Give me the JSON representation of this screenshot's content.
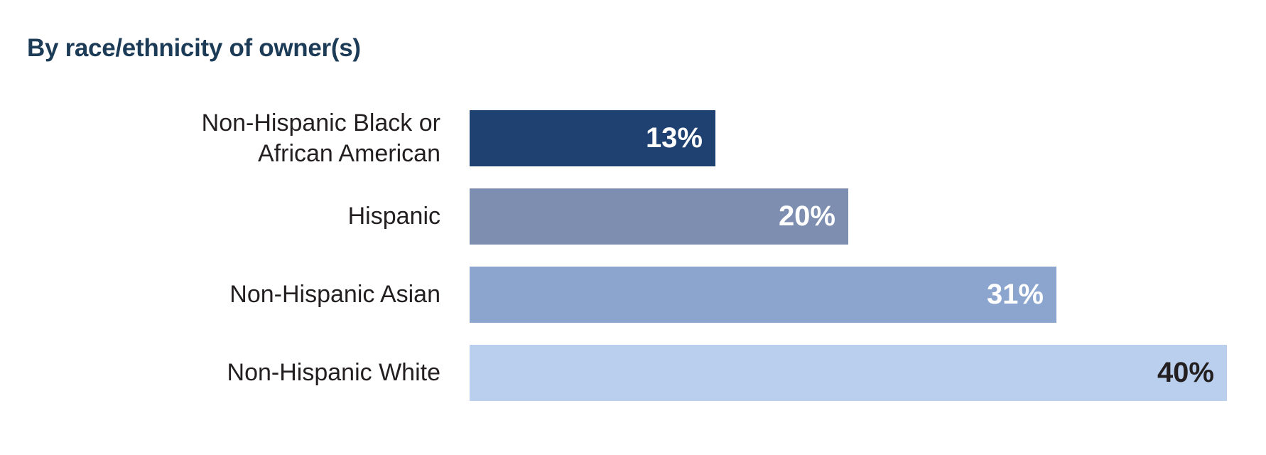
{
  "page": {
    "background_color": "#ffffff"
  },
  "chart_data": {
    "type": "bar",
    "orientation": "horizontal",
    "title": "By race/ethnicity of owner(s)",
    "title_color": "#1c3b57",
    "categories": [
      "Non-Hispanic Black or African American",
      "Hispanic",
      "Non-Hispanic Asian",
      "Non-Hispanic White"
    ],
    "values": [
      13,
      20,
      31,
      40
    ],
    "value_labels": [
      "13%",
      "20%",
      "31%",
      "40%"
    ],
    "bar_colors": [
      "#1f4171",
      "#7d8eb1",
      "#8ca5cf",
      "#bacfed"
    ],
    "value_label_colors": [
      "#ffffff",
      "#ffffff",
      "#ffffff",
      "#231f20"
    ],
    "category_label_color": "#231f20",
    "xlim": [
      0,
      40
    ],
    "grid": false,
    "legend": "none",
    "value_label_position": "inside-end",
    "axis_ticks": "none"
  }
}
